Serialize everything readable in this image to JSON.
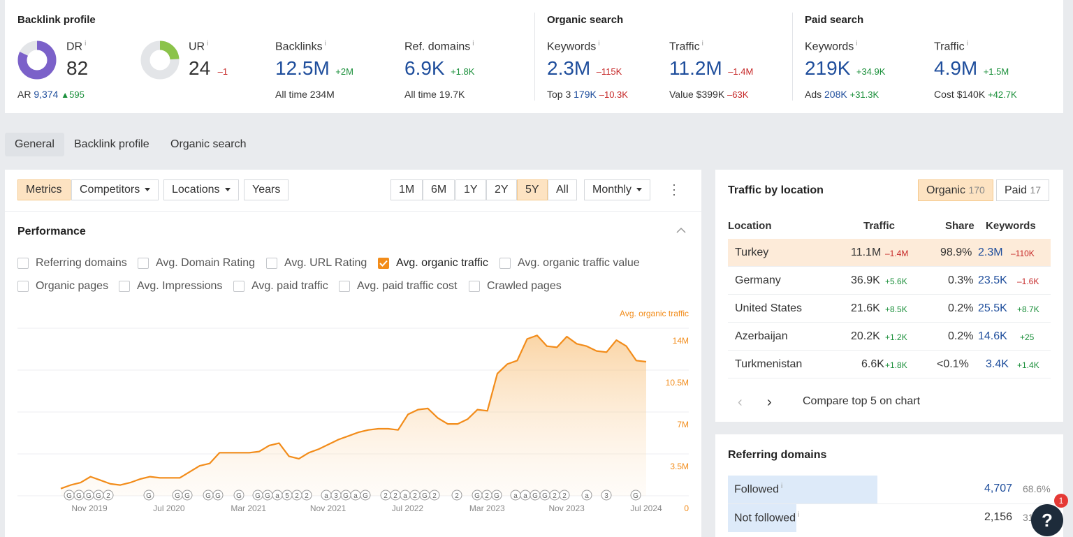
{
  "colors": {
    "accent": "#f28c1a",
    "link": "#1f4e9c",
    "positive": "#1a8f3a",
    "negative": "#c62828",
    "chart_line": "#f28c1a"
  },
  "overview": {
    "backlink_profile": {
      "title": "Backlink profile",
      "dr": {
        "label": "DR",
        "info": "i",
        "value": "82",
        "ring_fill": 0.82
      },
      "ar": {
        "label": "AR",
        "value": "9,374",
        "delta": "595"
      },
      "ur": {
        "label": "UR",
        "info": "i",
        "value": "24",
        "delta": "–1",
        "ring_fill": 0.24
      },
      "backlinks": {
        "label": "Backlinks",
        "info": "i",
        "value": "12.5M",
        "delta": "+2M",
        "sub_label": "All time",
        "sub_value": "234M"
      },
      "ref_domains": {
        "label": "Ref. domains",
        "info": "i",
        "value": "6.9K",
        "delta": "+1.8K",
        "sub_label": "All time",
        "sub_value": "19.7K"
      }
    },
    "organic_search": {
      "title": "Organic search",
      "keywords": {
        "label": "Keywords",
        "info": "i",
        "value": "2.3M",
        "delta": "–115K",
        "sub_label": "Top 3",
        "sub_value": "179K",
        "sub_delta": "–10.3K"
      },
      "traffic": {
        "label": "Traffic",
        "info": "i",
        "value": "11.2M",
        "delta": "–1.4M",
        "sub_label": "Value",
        "sub_value": "$399K",
        "sub_delta": "–63K"
      }
    },
    "paid_search": {
      "title": "Paid search",
      "keywords": {
        "label": "Keywords",
        "info": "i",
        "value": "219K",
        "delta": "+34.9K",
        "sub_label": "Ads",
        "sub_value": "208K",
        "sub_delta": "+31.3K"
      },
      "traffic": {
        "label": "Traffic",
        "info": "i",
        "value": "4.9M",
        "delta": "+1.5M",
        "sub_label": "Cost",
        "sub_value": "$140K",
        "sub_delta": "+42.7K"
      }
    }
  },
  "tabs": [
    "General",
    "Backlink profile",
    "Organic search"
  ],
  "toolbar": {
    "metrics": "Metrics",
    "competitors": "Competitors",
    "locations": "Locations",
    "years": "Years",
    "ranges": [
      "1M",
      "6M",
      "1Y",
      "2Y",
      "5Y",
      "All"
    ],
    "selected_range": "5Y",
    "interval": "Monthly"
  },
  "performance": {
    "title": "Performance",
    "checkboxes": [
      {
        "label": "Referring domains",
        "checked": false
      },
      {
        "label": "Avg. Domain Rating",
        "checked": false
      },
      {
        "label": "Avg. URL Rating",
        "checked": false
      },
      {
        "label": "Avg. organic traffic",
        "checked": true
      },
      {
        "label": "Avg. organic traffic value",
        "checked": false
      },
      {
        "label": "Organic pages",
        "checked": false
      },
      {
        "label": "Avg. Impressions",
        "checked": false
      },
      {
        "label": "Avg. paid traffic",
        "checked": false
      },
      {
        "label": "Avg. paid traffic cost",
        "checked": false
      },
      {
        "label": "Crawled pages",
        "checked": false
      }
    ]
  },
  "chart_data": {
    "type": "area",
    "series": [
      {
        "name": "Avg. organic traffic",
        "x": [
          "2019-08",
          "2019-09",
          "2019-10",
          "2019-11",
          "2019-12",
          "2020-01",
          "2020-02",
          "2020-03",
          "2020-04",
          "2020-05",
          "2020-06",
          "2020-07",
          "2020-08",
          "2020-09",
          "2020-10",
          "2020-11",
          "2020-12",
          "2021-01",
          "2021-02",
          "2021-03",
          "2021-04",
          "2021-05",
          "2021-06",
          "2021-07",
          "2021-08",
          "2021-09",
          "2021-10",
          "2021-11",
          "2021-12",
          "2022-01",
          "2022-02",
          "2022-03",
          "2022-04",
          "2022-05",
          "2022-06",
          "2022-07",
          "2022-08",
          "2022-09",
          "2022-10",
          "2022-11",
          "2022-12",
          "2023-01",
          "2023-02",
          "2023-03",
          "2023-04",
          "2023-05",
          "2023-06",
          "2023-07",
          "2023-08",
          "2023-09",
          "2023-10",
          "2023-11",
          "2023-12",
          "2024-01",
          "2024-02",
          "2024-03",
          "2024-04",
          "2024-05",
          "2024-06",
          "2024-07"
        ],
        "values": [
          0.6,
          0.9,
          1.1,
          1.6,
          1.3,
          1.0,
          0.9,
          1.1,
          1.4,
          1.6,
          1.5,
          1.5,
          1.5,
          2.0,
          2.5,
          2.7,
          3.6,
          3.6,
          3.6,
          3.6,
          3.7,
          4.2,
          4.4,
          3.3,
          3.1,
          3.6,
          3.9,
          4.3,
          4.7,
          5.0,
          5.3,
          5.5,
          5.6,
          5.6,
          5.5,
          6.8,
          7.2,
          7.3,
          6.5,
          6.0,
          6.0,
          6.4,
          7.2,
          7.1,
          10.2,
          11.0,
          11.3,
          13.1,
          13.4,
          12.5,
          12.4,
          13.3,
          12.7,
          12.5,
          12.1,
          12.0,
          13.0,
          12.5,
          11.3,
          11.2
        ]
      }
    ],
    "x_ticks": [
      "Nov 2019",
      "Jul 2020",
      "Mar 2021",
      "Nov 2021",
      "Jul 2022",
      "Mar 2023",
      "Nov 2023",
      "Jul 2024"
    ],
    "y_ticks": [
      "14M",
      "10.5M",
      "7M",
      "3.5M",
      "0"
    ],
    "y_unit": "millions",
    "ylim": [
      0,
      14
    ],
    "legend": "Avg. organic traffic",
    "legend_position": "top-right",
    "grid": true,
    "annotations": [
      "G",
      "G",
      "G",
      "G",
      "2",
      "G",
      "G",
      "G",
      "G",
      "G",
      "G",
      "G",
      "G",
      "a",
      "5",
      "2",
      "2",
      "a",
      "3",
      "G",
      "a",
      "G",
      "2",
      "2",
      "a",
      "2",
      "G",
      "2",
      "2",
      "G",
      "2",
      "G",
      "a",
      "a",
      "G",
      "G",
      "2",
      "2",
      "a",
      "3",
      "G"
    ]
  },
  "traffic_by_location": {
    "title": "Traffic by location",
    "organic_label": "Organic",
    "organic_count": "170",
    "paid_label": "Paid",
    "paid_count": "17",
    "headers": [
      "Location",
      "Traffic",
      "Share",
      "Keywords"
    ],
    "rows": [
      {
        "location": "Turkey",
        "traffic": "11.1M",
        "traffic_delta": "–1.4M",
        "share": "98.9%",
        "keywords": "2.3M",
        "keywords_delta": "–110K"
      },
      {
        "location": "Germany",
        "traffic": "36.9K",
        "traffic_delta": "+5.6K",
        "share": "0.3%",
        "keywords": "23.5K",
        "keywords_delta": "–1.6K"
      },
      {
        "location": "United States",
        "traffic": "21.6K",
        "traffic_delta": "+8.5K",
        "share": "0.2%",
        "keywords": "25.5K",
        "keywords_delta": "+8.7K"
      },
      {
        "location": "Azerbaijan",
        "traffic": "20.2K",
        "traffic_delta": "+1.2K",
        "share": "0.2%",
        "keywords": "14.6K",
        "keywords_delta": "+25"
      },
      {
        "location": "Turkmenistan",
        "traffic": "6.6K",
        "traffic_delta": "+1.8K",
        "share": "<0.1%",
        "keywords": "3.4K",
        "keywords_delta": "+1.4K"
      }
    ],
    "compare_label": "Compare top 5 on chart"
  },
  "referring_domains": {
    "title": "Referring domains",
    "rows": [
      {
        "label": "Followed",
        "info": "i",
        "value": "4,707",
        "percent": "68.6%",
        "share": 0.686
      },
      {
        "label": "Not followed",
        "info": "i",
        "value": "2,156",
        "percent": "31",
        "share": 0.314
      }
    ]
  },
  "help": {
    "label": "?",
    "badge": "1"
  }
}
